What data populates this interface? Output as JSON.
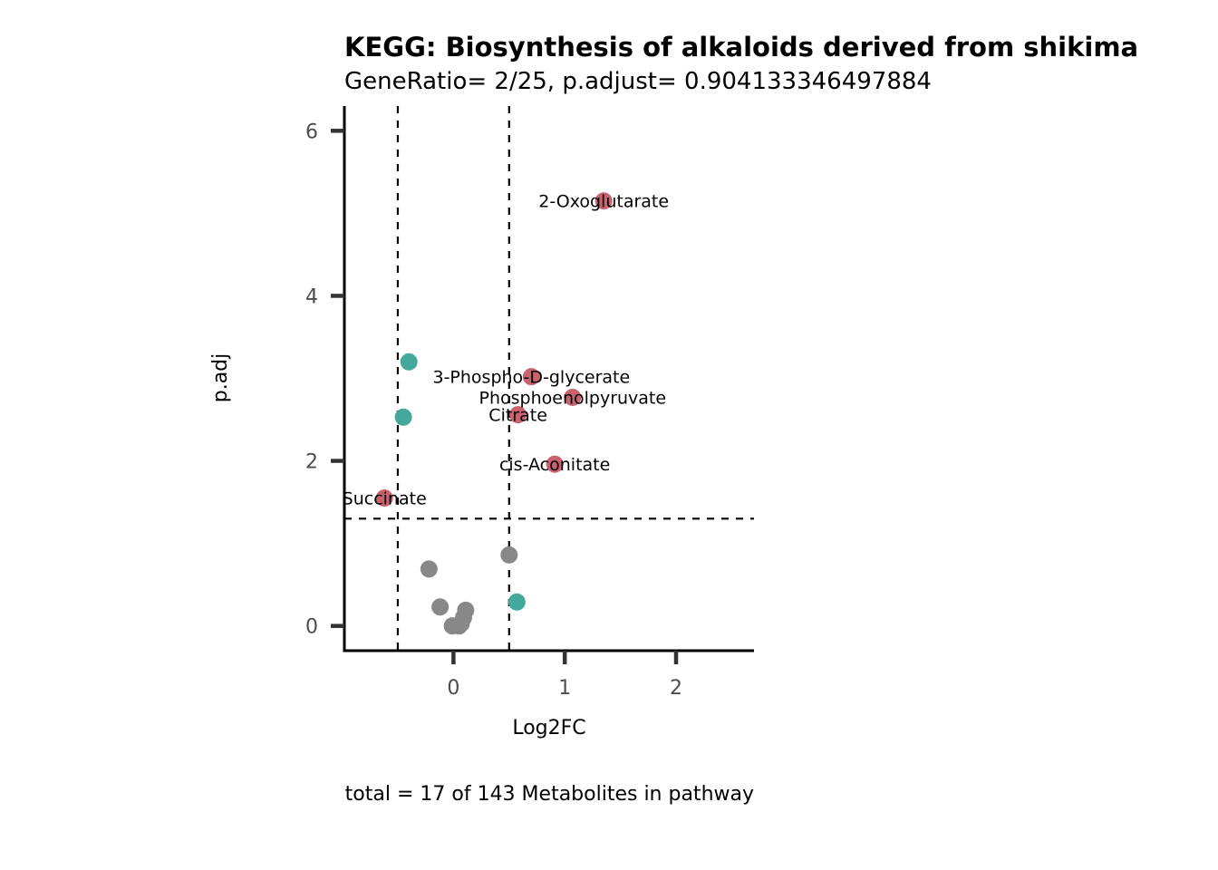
{
  "chart_data": {
    "type": "scatter",
    "title": "KEGG: Biosynthesis of alkaloids derived from shikima",
    "subtitle": "GeneRatio= 2/25, p.adjust= 0.904133346497884",
    "xlabel": "Log2FC",
    "ylabel": "p.adj",
    "caption": "total = 17 of 143 Metabolites in pathway",
    "xlim": [
      -0.98,
      2.7
    ],
    "ylim": [
      -0.3,
      6.3
    ],
    "x_ticks": [
      0,
      1,
      2
    ],
    "y_ticks": [
      0,
      2,
      4,
      6
    ],
    "thresholds": {
      "x": [
        -0.5,
        0.5
      ],
      "y": 1.3
    },
    "grid": false,
    "colors": {
      "up": "#c9626f",
      "down": "#44a99a",
      "ns": "#888888"
    },
    "points": [
      {
        "x": 1.35,
        "y": 5.15,
        "group": "up",
        "label": "2-Oxoglutarate"
      },
      {
        "x": 0.7,
        "y": 3.02,
        "group": "up",
        "label": "3-Phospho-D-glycerate"
      },
      {
        "x": 1.07,
        "y": 2.77,
        "group": "up",
        "label": "Phosphoenolpyruvate"
      },
      {
        "x": 0.58,
        "y": 2.56,
        "group": "up",
        "label": "Citrate"
      },
      {
        "x": 0.91,
        "y": 1.96,
        "group": "up",
        "label": "cis-Aconitate"
      },
      {
        "x": -0.62,
        "y": 1.55,
        "group": "up",
        "label": "Succinate"
      },
      {
        "x": -0.4,
        "y": 3.2,
        "group": "down",
        "label": ""
      },
      {
        "x": -0.45,
        "y": 2.53,
        "group": "down",
        "label": ""
      },
      {
        "x": 0.57,
        "y": 0.29,
        "group": "down",
        "label": ""
      },
      {
        "x": 0.5,
        "y": 0.86,
        "group": "ns",
        "label": ""
      },
      {
        "x": -0.22,
        "y": 0.69,
        "group": "ns",
        "label": ""
      },
      {
        "x": -0.12,
        "y": 0.23,
        "group": "ns",
        "label": ""
      },
      {
        "x": 0.11,
        "y": 0.19,
        "group": "ns",
        "label": ""
      },
      {
        "x": 0.09,
        "y": 0.1,
        "group": "ns",
        "label": ""
      },
      {
        "x": 0.07,
        "y": 0.03,
        "group": "ns",
        "label": ""
      },
      {
        "x": -0.01,
        "y": 0.0,
        "group": "ns",
        "label": ""
      },
      {
        "x": 0.05,
        "y": 0.0,
        "group": "ns",
        "label": ""
      }
    ]
  }
}
